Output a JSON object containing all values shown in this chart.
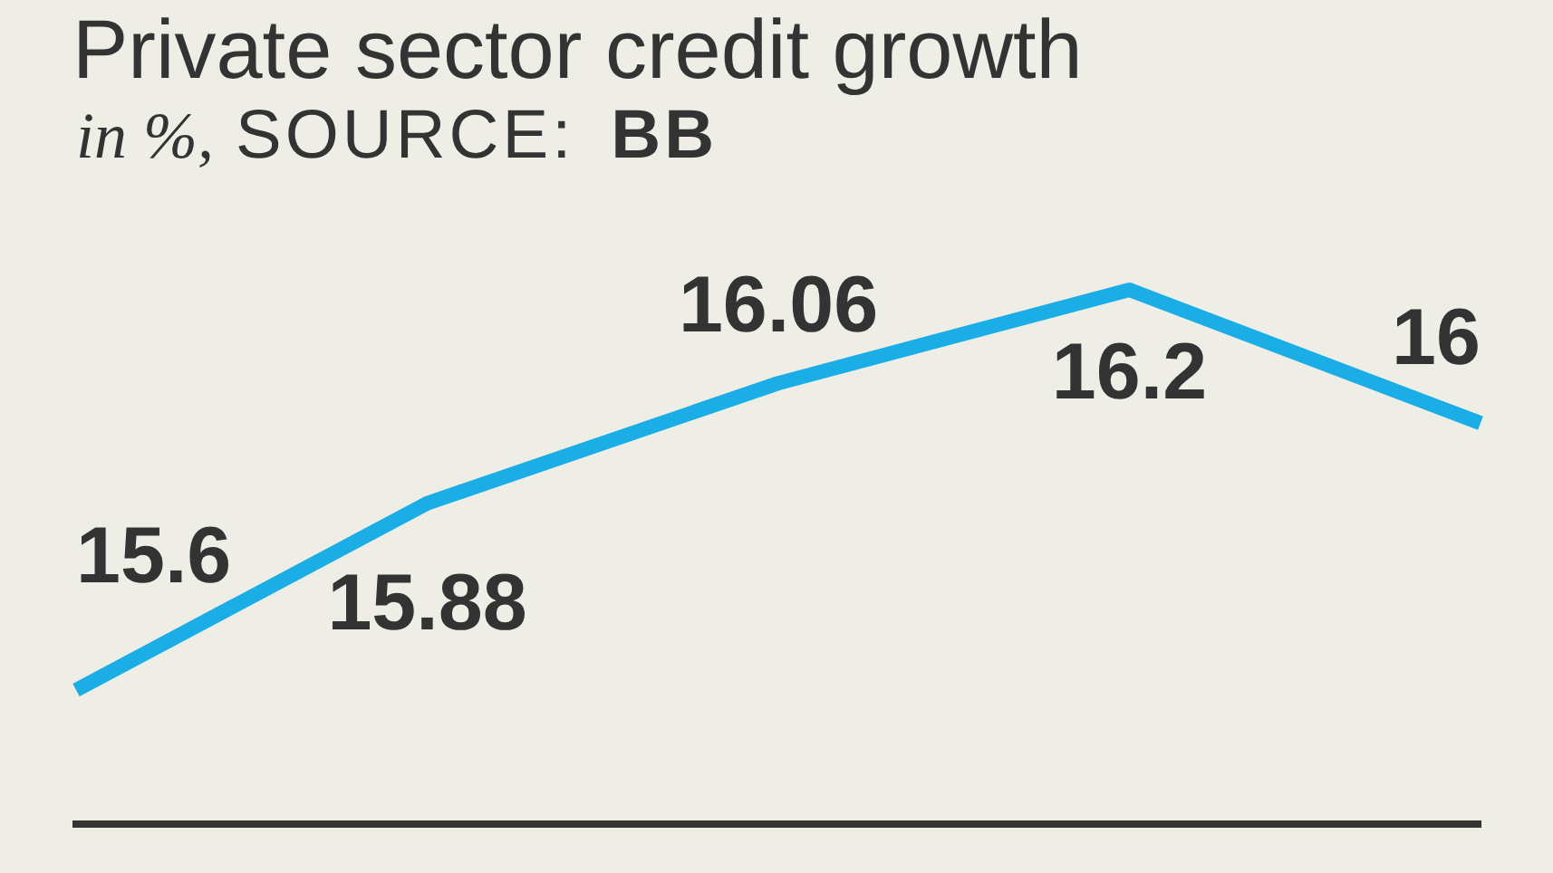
{
  "chart_data": {
    "type": "line",
    "title": "Private sector credit growth",
    "subtitle": "in %,",
    "annotations": [
      "SOURCE: BB"
    ],
    "categories": [
      null,
      null,
      null,
      null,
      null
    ],
    "values": [
      15.6,
      15.88,
      16.06,
      16.2,
      16
    ],
    "color": "#1aade6",
    "data_labels": true,
    "tick_labels": false,
    "marker": "none",
    "line_style": "solid"
  }
}
